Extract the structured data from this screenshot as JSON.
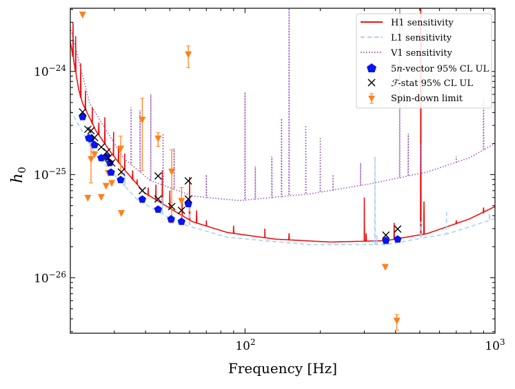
{
  "chart_data": {
    "type": "scatter",
    "xlabel": "Frequency [Hz]",
    "ylabel": {
      "base": "h",
      "sub": "0"
    },
    "xscale": "log",
    "yscale": "log",
    "xlim": [
      20,
      1000
    ],
    "ylim": [
      2.9e-27,
      4.1e-24
    ],
    "grid": false,
    "legend_position": "top-right",
    "x_ticks": [
      {
        "value": 100,
        "base": "10",
        "exp": "2"
      },
      {
        "value": 1000,
        "base": "10",
        "exp": "3"
      }
    ],
    "y_ticks": [
      {
        "value": 1e-24,
        "base": "10",
        "exp": "−24"
      },
      {
        "value": 1e-25,
        "base": "10",
        "exp": "−25"
      },
      {
        "value": 1e-26,
        "base": "10",
        "exp": "−26"
      }
    ],
    "legend": [
      {
        "key": "H1",
        "label": "H1 sensitivity"
      },
      {
        "key": "L1",
        "label": "L1 sensitivity"
      },
      {
        "key": "V1",
        "label": "V1 sensitivity"
      },
      {
        "key": "vec",
        "label": "5n-vector 95% CL UL",
        "parts": [
          "5",
          "n",
          "-vector 95% CL UL"
        ]
      },
      {
        "key": "fstat",
        "label": "F-stat 95% CL UL",
        "parts": [
          "ℱ",
          "-stat 95% CL UL"
        ]
      },
      {
        "key": "sd",
        "label": "Spin-down limit"
      }
    ],
    "colors": {
      "H1": "#ee1111",
      "L1": "#a8d0f5",
      "V1": "#9b59b6",
      "vec": "#0a14ee",
      "fstat": "#000000",
      "sd": "#ff8019"
    },
    "series": [
      {
        "name": "H1 sensitivity",
        "key": "H1",
        "style": "solid",
        "points": [
          [
            20,
            1.96e-24
          ],
          [
            21.6,
            6.7e-25
          ],
          [
            22.4,
            4.9e-25
          ],
          [
            25.3,
            2.67e-25
          ],
          [
            28.8,
            1.69e-25
          ],
          [
            32.6,
            1.15e-25
          ],
          [
            39.5,
            6.7e-26
          ],
          [
            50.9,
            4.6e-26
          ],
          [
            61.6,
            3.5e-26
          ],
          [
            84.8,
            2.75e-26
          ],
          [
            132,
            2.37e-26
          ],
          [
            220,
            2.22e-26
          ],
          [
            366,
            2.29e-26
          ],
          [
            535,
            2.68e-26
          ],
          [
            786,
            3.7e-26
          ],
          [
            1000,
            4.9e-26
          ]
        ],
        "spikes": [
          [
            20.5,
            3e-24
          ],
          [
            21,
            2.2e-24
          ],
          [
            22,
            1.2e-24
          ],
          [
            23,
            6.5e-25
          ],
          [
            24.5,
            4.5e-25
          ],
          [
            26,
            3.2e-25
          ],
          [
            27.5,
            3.6e-25
          ],
          [
            29.8,
            2.6e-25
          ],
          [
            31.2,
            1.9e-25
          ],
          [
            33,
            1.6e-25
          ],
          [
            35.5,
            1.1e-25
          ],
          [
            37,
            9e-26
          ],
          [
            41,
            7.5e-26
          ],
          [
            44,
            8e-26
          ],
          [
            46.7,
            1.1e-25
          ],
          [
            50,
            7e-26
          ],
          [
            56,
            5.5e-26
          ],
          [
            60,
            9.5e-26
          ],
          [
            64,
            4.5e-26
          ],
          [
            70,
            3.6e-26
          ],
          [
            90,
            3.2e-26
          ],
          [
            120,
            3e-26
          ],
          [
            150,
            2.7e-26
          ],
          [
            300,
            6e-26
          ],
          [
            305,
            2.7e-26
          ],
          [
            395,
            3.4e-26
          ],
          [
            505,
            6.6e-24
          ],
          [
            520,
            5.5e-26
          ],
          [
            700,
            3.6e-26
          ],
          [
            900,
            4.8e-26
          ]
        ]
      },
      {
        "name": "L1 sensitivity",
        "key": "L1",
        "style": "dashed",
        "points": [
          [
            20,
            4.2e-25
          ],
          [
            25.3,
            1.56e-25
          ],
          [
            37,
            5.75e-26
          ],
          [
            54,
            3.4e-26
          ],
          [
            84.8,
            2.47e-26
          ],
          [
            181,
            2.09e-26
          ],
          [
            366,
            2.1e-26
          ],
          [
            650,
            2.68e-26
          ],
          [
            1000,
            3.75e-26
          ]
        ],
        "spikes": [
          [
            24,
            2.6e-25
          ],
          [
            33,
            1.1e-25
          ],
          [
            46.7,
            6e-26
          ],
          [
            60,
            5e-26
          ],
          [
            331,
            1.5e-25
          ],
          [
            337,
            2.6e-26
          ],
          [
            505,
            3.5e-26
          ],
          [
            640,
            4.5e-26
          ],
          [
            950,
            4.2e-26
          ]
        ]
      },
      {
        "name": "V1 sensitivity",
        "key": "V1",
        "style": "dotted",
        "points": [
          [
            20,
            2.68e-24
          ],
          [
            23.9,
            4.9e-25
          ],
          [
            32.6,
            1.45e-25
          ],
          [
            41.7,
            8.8e-26
          ],
          [
            61.6,
            6.2e-26
          ],
          [
            94.7,
            5.6e-26
          ],
          [
            181,
            6.5e-26
          ],
          [
            313,
            8.1e-26
          ],
          [
            535,
            1.06e-25
          ],
          [
            786,
            1.45e-25
          ],
          [
            1000,
            2e-25
          ]
        ],
        "spikes": [
          [
            35,
            4.5e-25
          ],
          [
            38,
            4.2e-25
          ],
          [
            42,
            6e-25
          ],
          [
            47,
            2.5e-25
          ],
          [
            52,
            1.8e-25
          ],
          [
            70,
            1e-25
          ],
          [
            100,
            6.3e-25
          ],
          [
            110,
            1.2e-25
          ],
          [
            128,
            1.5e-25
          ],
          [
            140,
            3.5e-25
          ],
          [
            150,
            4.1e-24
          ],
          [
            175,
            3e-25
          ],
          [
            200,
            2.3e-25
          ],
          [
            225,
            1e-25
          ],
          [
            290,
            1.3e-25
          ],
          [
            416,
            4.1e-24
          ],
          [
            450,
            2.5e-25
          ],
          [
            505,
            2e-25
          ],
          [
            700,
            1.5e-25
          ],
          [
            900,
            5.5e-25
          ]
        ]
      }
    ],
    "vector_ul": [
      [
        22.4,
        3.63e-25
      ],
      [
        23.7,
        2.26e-25
      ],
      [
        24.2,
        2.22e-25
      ],
      [
        25.0,
        1.94e-25
      ],
      [
        26.6,
        1.45e-25
      ],
      [
        27.8,
        1.49e-25
      ],
      [
        28.8,
        1.3e-25
      ],
      [
        29.1,
        1.05e-25
      ],
      [
        31.8,
        8.9e-26
      ],
      [
        38.8,
        5.75e-26
      ],
      [
        44.9,
        4.6e-26
      ],
      [
        50.6,
        3.7e-26
      ],
      [
        55.7,
        3.5e-26
      ],
      [
        59.3,
        5.2e-26
      ],
      [
        366,
        2.29e-26
      ],
      [
        408,
        2.36e-26
      ]
    ],
    "fstat_ul": [
      [
        22.4,
        4.04e-25
      ],
      [
        23.5,
        2.75e-25
      ],
      [
        24.2,
        2.67e-25
      ],
      [
        25.0,
        2.29e-25
      ],
      [
        26.6,
        1.85e-25
      ],
      [
        28.0,
        1.66e-25
      ],
      [
        28.4,
        1.45e-25
      ],
      [
        29.3,
        1.3e-25
      ],
      [
        32.0,
        1.06e-25
      ],
      [
        38.8,
        7e-26
      ],
      [
        44.9,
        9.7e-26
      ],
      [
        44.9,
        5.8e-26
      ],
      [
        50.9,
        4.9e-26
      ],
      [
        55.7,
        4.5e-26
      ],
      [
        59.3,
        8.7e-26
      ],
      [
        59.3,
        5.8e-26
      ],
      [
        366,
        2.59e-26
      ],
      [
        408,
        2.97e-26
      ]
    ],
    "spindown_limit": [
      {
        "f": 22.4,
        "h": 3.52e-24
      },
      {
        "f": 24.2,
        "h": 1.4e-25,
        "err": [
          8.3e-26,
          1.9e-25
        ]
      },
      {
        "f": 25.0,
        "h": 1.56e-25
      },
      {
        "f": 23.5,
        "h": 5.9e-26
      },
      {
        "f": 26.6,
        "h": 6e-26
      },
      {
        "f": 27.8,
        "h": 7.7e-26
      },
      {
        "f": 28.4,
        "h": 1.03e-25
      },
      {
        "f": 29.3,
        "h": 8.2e-26
      },
      {
        "f": 31.8,
        "h": 1.77e-25,
        "err": [
          1.02e-25,
          2.36e-25
        ]
      },
      {
        "f": 32.0,
        "h": 4.2e-26
      },
      {
        "f": 38.8,
        "h": 3.37e-25,
        "err": [
          1.1e-25,
          5.5e-25
        ]
      },
      {
        "f": 44.9,
        "h": 2.22e-25,
        "err": [
          1.88e-25,
          2.55e-25
        ]
      },
      {
        "f": 50.9,
        "h": 1.06e-25,
        "err": [
          3.4e-26,
          1.74e-25
        ]
      },
      {
        "f": 55.7,
        "h": 5.5e-26,
        "err": [
          3.5e-26,
          7.5e-26
        ]
      },
      {
        "f": 59.3,
        "h": 1.45e-24,
        "err": [
          1.09e-24,
          1.77e-24
        ]
      },
      {
        "f": 364,
        "h": 1.26e-26
      },
      {
        "f": 405,
        "h": 3.8e-27,
        "err": [
          3.1e-27,
          4.4e-27
        ]
      }
    ]
  }
}
